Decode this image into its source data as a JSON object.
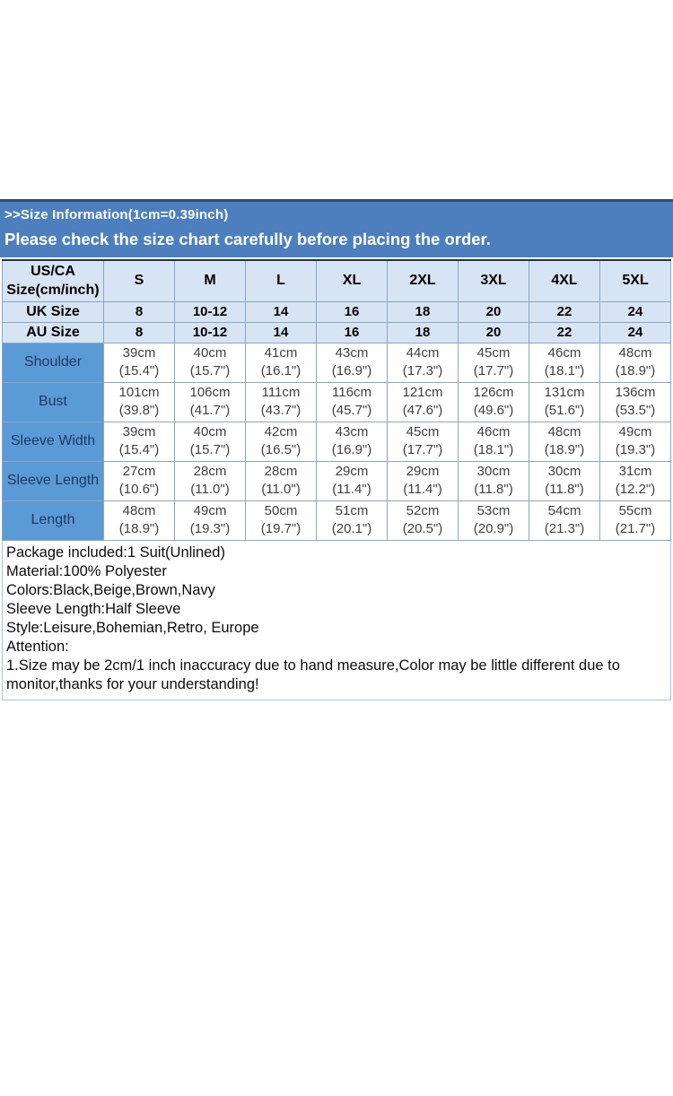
{
  "banner": {
    "line1": ">>Size Information(1cm=0.39inch)",
    "line2": "Please check the size chart carefully before placing the order."
  },
  "size_table": {
    "corner_label_top": "US/CA",
    "corner_label_bottom": "Size(cm/inch)",
    "size_columns": [
      "S",
      "M",
      "L",
      "XL",
      "2XL",
      "3XL",
      "4XL",
      "5XL"
    ],
    "region_rows": [
      {
        "label": "UK Size",
        "values": [
          "8",
          "10-12",
          "14",
          "16",
          "18",
          "20",
          "22",
          "24"
        ]
      },
      {
        "label": "AU Size",
        "values": [
          "8",
          "10-12",
          "14",
          "16",
          "18",
          "20",
          "22",
          "24"
        ]
      }
    ],
    "measurement_rows": [
      {
        "label": "Shoulder",
        "values_cm": [
          "39cm",
          "40cm",
          "41cm",
          "43cm",
          "44cm",
          "45cm",
          "46cm",
          "48cm"
        ],
        "values_inch": [
          "(15.4\")",
          "(15.7\")",
          "(16.1\")",
          "(16.9\")",
          "(17.3\")",
          "(17.7\")",
          "(18.1\")",
          "(18.9\")"
        ]
      },
      {
        "label": "Bust",
        "values_cm": [
          "101cm",
          "106cm",
          "111cm",
          "116cm",
          "121cm",
          "126cm",
          "131cm",
          "136cm"
        ],
        "values_inch": [
          "(39.8\")",
          "(41.7\")",
          "(43.7\")",
          "(45.7\")",
          "(47.6\")",
          "(49.6\")",
          "(51.6\")",
          "(53.5\")"
        ]
      },
      {
        "label": "Sleeve Width",
        "values_cm": [
          "39cm",
          "40cm",
          "42cm",
          "43cm",
          "45cm",
          "46cm",
          "48cm",
          "49cm"
        ],
        "values_inch": [
          "(15.4\")",
          "(15.7\")",
          "(16.5\")",
          "(16.9\")",
          "(17.7\")",
          "(18.1\")",
          "(18.9\")",
          "(19.3\")"
        ]
      },
      {
        "label": "Sleeve Length",
        "values_cm": [
          "27cm",
          "28cm",
          "28cm",
          "29cm",
          "29cm",
          "30cm",
          "30cm",
          "31cm"
        ],
        "values_inch": [
          "(10.6\")",
          "(11.0\")",
          "(11.0\")",
          "(11.4\")",
          "(11.4\")",
          "(11.8\")",
          "(11.8\")",
          "(12.2\")"
        ]
      },
      {
        "label": "Length",
        "values_cm": [
          "48cm",
          "49cm",
          "50cm",
          "51cm",
          "52cm",
          "53cm",
          "54cm",
          "55cm"
        ],
        "values_inch": [
          "(18.9\")",
          "(19.3\")",
          "(19.7\")",
          "(20.1\")",
          "(20.5\")",
          "(20.9\")",
          "(21.3\")",
          "(21.7\")"
        ]
      }
    ]
  },
  "details": {
    "lines": [
      "Package included:1 Suit(Unlined)",
      "Material:100% Polyester",
      "Colors:Black,Beige,Brown,Navy",
      "Sleeve Length:Half Sleeve",
      "Style:Leisure,Bohemian,Retro, Europe",
      "Attention:",
      "1.Size may be 2cm/1 inch inaccuracy due to hand measure,Color may be little different due to monitor,thanks for your understanding!"
    ]
  },
  "colors": {
    "banner_blue": "#4d7fbf",
    "banner_top_border": "#2d4f78",
    "header_light_blue": "#d7e4f3",
    "measurement_label_blue": "#5b9bd5",
    "measurement_label_text": "#1f3864",
    "data_text_gray": "#3f3f3f",
    "table_border": "#8aa6c6"
  }
}
